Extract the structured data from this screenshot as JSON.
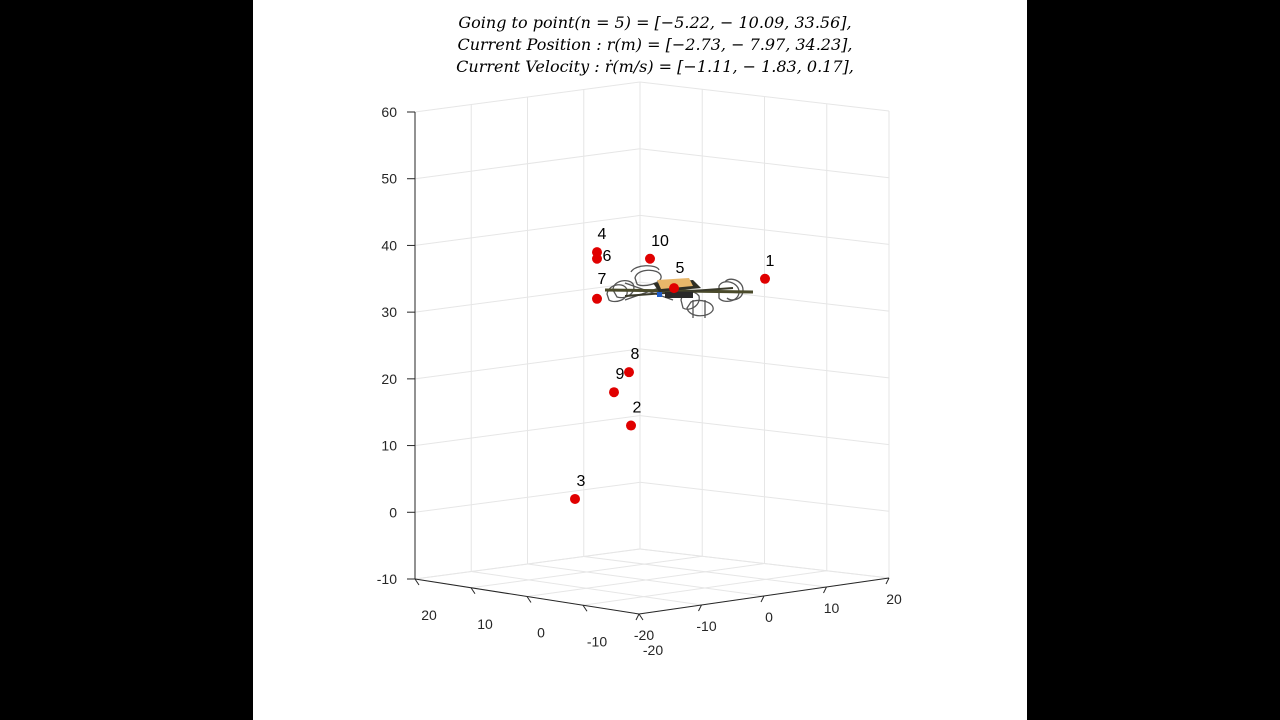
{
  "chart_data": {
    "type": "scatter",
    "dimensions": 3,
    "title_lines": [
      "Going to point(n = 5) = [−5.22,  − 10.09,  33.56],",
      "Current Position : r(m) = [−2.73,  − 7.97,  34.23],",
      "Current Velocity : ṙ(m/s) = [−1.11,  − 1.83,  0.17],"
    ],
    "target_index": 5,
    "target": [
      -5.22,
      -10.09,
      33.56
    ],
    "position": [
      -2.73,
      -7.97,
      34.23
    ],
    "velocity": [
      -1.11,
      -1.83,
      0.17
    ],
    "xlim": [
      -20,
      20
    ],
    "ylim": [
      -20,
      20
    ],
    "zlim": [
      -10,
      60
    ],
    "x_ticks": [
      "-20",
      "-10",
      "0",
      "10",
      "20"
    ],
    "y_ticks": [
      "20",
      "10",
      "0",
      "-10",
      "-20"
    ],
    "z_ticks": [
      "60",
      "50",
      "40",
      "30",
      "20",
      "10",
      "0",
      "-10"
    ],
    "grid": true,
    "marker_color": "#e00000",
    "waypoints": [
      {
        "label": "1",
        "z": 35
      },
      {
        "label": "2",
        "z": 13
      },
      {
        "label": "3",
        "z": 2
      },
      {
        "label": "4",
        "z": 39
      },
      {
        "label": "5",
        "z": 33.6
      },
      {
        "label": "6",
        "z": 38
      },
      {
        "label": "7",
        "z": 32
      },
      {
        "label": "8",
        "z": 21
      },
      {
        "label": "9",
        "z": 18
      },
      {
        "label": "10",
        "z": 38
      }
    ],
    "vehicle": "quadcopter"
  }
}
